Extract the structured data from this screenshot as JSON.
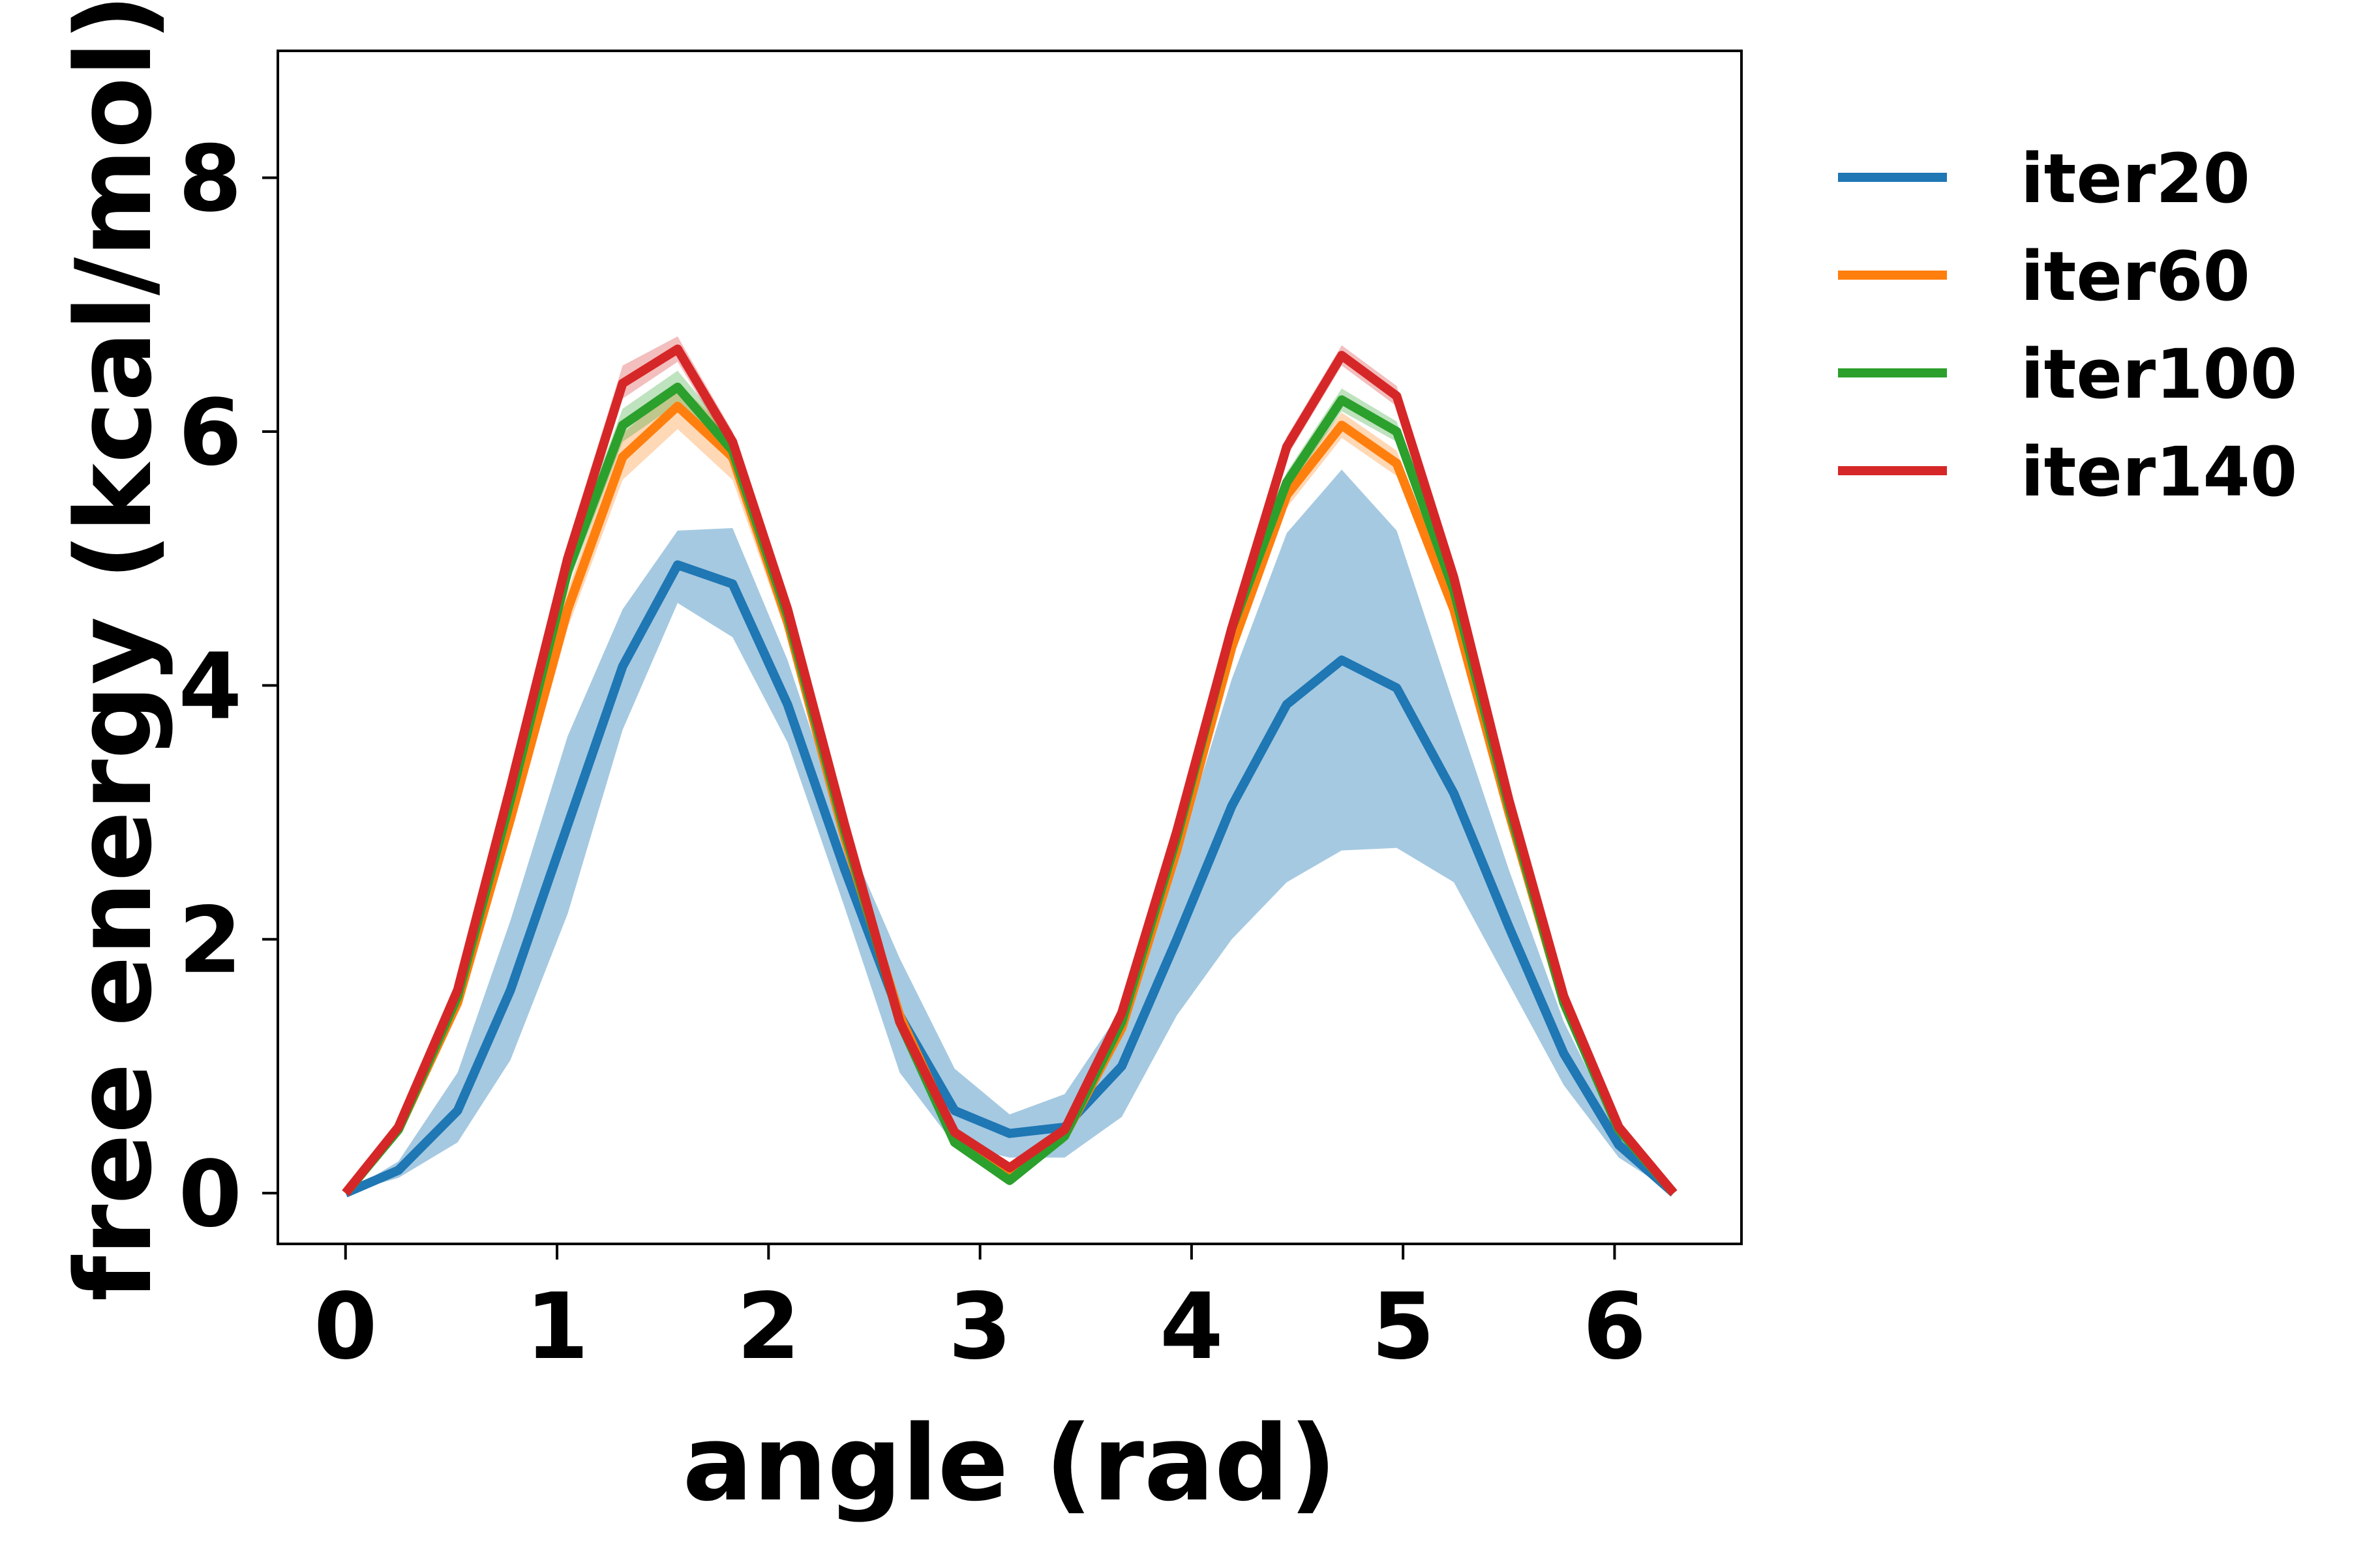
{
  "chart_data": {
    "type": "line",
    "xlabel": "angle (rad)",
    "ylabel": "free energy (kcal/mol)",
    "xlim": [
      -0.32,
      6.6
    ],
    "ylim": [
      -0.4,
      9.0
    ],
    "xticks": [
      0,
      1,
      2,
      3,
      4,
      5,
      6
    ],
    "yticks": [
      0,
      2,
      4,
      6,
      8
    ],
    "grid": false,
    "legend_position": "outside-top-right",
    "x": [
      0,
      0.25,
      0.53,
      0.78,
      1.05,
      1.31,
      1.57,
      1.83,
      2.09,
      2.36,
      2.62,
      2.88,
      3.14,
      3.4,
      3.67,
      3.93,
      4.19,
      4.45,
      4.71,
      4.97,
      5.24,
      5.5,
      5.76,
      6.02,
      6.28
    ],
    "series": [
      {
        "name": "iter20",
        "color": "#1f77b4",
        "values": [
          0,
          0.18,
          0.65,
          1.6,
          2.9,
          4.15,
          4.95,
          4.8,
          3.85,
          2.55,
          1.4,
          0.65,
          0.47,
          0.52,
          1.0,
          2.0,
          3.05,
          3.85,
          4.2,
          3.98,
          3.15,
          2.1,
          1.1,
          0.38,
          0
        ],
        "lower": [
          0,
          0.12,
          0.4,
          1.05,
          2.2,
          3.65,
          4.65,
          4.38,
          3.55,
          2.25,
          0.95,
          0.38,
          0.28,
          0.28,
          0.6,
          1.4,
          2.0,
          2.45,
          2.7,
          2.72,
          2.45,
          1.65,
          0.85,
          0.28,
          0
        ],
        "upper": [
          0,
          0.25,
          0.95,
          2.15,
          3.6,
          4.6,
          5.22,
          5.24,
          4.2,
          2.85,
          1.85,
          0.98,
          0.62,
          0.78,
          1.45,
          2.65,
          4.05,
          5.2,
          5.7,
          5.22,
          3.85,
          2.55,
          1.35,
          0.48,
          0
        ]
      },
      {
        "name": "iter60",
        "color": "#ff7f0e",
        "values": [
          0,
          0.5,
          1.5,
          2.95,
          4.6,
          5.8,
          6.2,
          5.8,
          4.5,
          2.8,
          1.4,
          0.45,
          0.15,
          0.45,
          1.3,
          2.7,
          4.3,
          5.5,
          6.05,
          5.75,
          4.6,
          3.0,
          1.5,
          0.5,
          0
        ],
        "lower": [
          0,
          0.45,
          1.42,
          2.82,
          4.45,
          5.62,
          6.02,
          5.62,
          4.38,
          2.7,
          1.33,
          0.4,
          0.1,
          0.4,
          1.24,
          2.6,
          4.2,
          5.4,
          5.95,
          5.65,
          4.5,
          2.92,
          1.44,
          0.45,
          0
        ],
        "upper": [
          0,
          0.55,
          1.58,
          3.08,
          4.75,
          5.98,
          6.38,
          5.98,
          4.62,
          2.9,
          1.47,
          0.5,
          0.2,
          0.5,
          1.36,
          2.8,
          4.4,
          5.6,
          6.15,
          5.85,
          4.7,
          3.08,
          1.56,
          0.55,
          0
        ]
      },
      {
        "name": "iter100",
        "color": "#2ca02c",
        "values": [
          0,
          0.5,
          1.55,
          3.1,
          4.9,
          6.05,
          6.35,
          5.85,
          4.55,
          2.85,
          1.35,
          0.4,
          0.1,
          0.45,
          1.35,
          2.8,
          4.45,
          5.6,
          6.25,
          6.0,
          4.75,
          3.05,
          1.5,
          0.5,
          0
        ],
        "lower": [
          0,
          0.46,
          1.48,
          3.0,
          4.78,
          5.92,
          6.22,
          5.74,
          4.46,
          2.78,
          1.29,
          0.36,
          0.06,
          0.4,
          1.29,
          2.72,
          4.36,
          5.52,
          6.16,
          5.92,
          4.66,
          2.98,
          1.45,
          0.46,
          0
        ],
        "upper": [
          0,
          0.54,
          1.62,
          3.2,
          5.02,
          6.18,
          6.48,
          5.96,
          4.64,
          2.92,
          1.41,
          0.44,
          0.14,
          0.5,
          1.41,
          2.88,
          4.54,
          5.68,
          6.34,
          6.08,
          4.84,
          3.12,
          1.55,
          0.54,
          0
        ]
      },
      {
        "name": "iter140",
        "color": "#d62728",
        "values": [
          0,
          0.52,
          1.6,
          3.2,
          5.0,
          6.38,
          6.65,
          5.92,
          4.6,
          2.9,
          1.35,
          0.48,
          0.2,
          0.5,
          1.42,
          2.85,
          4.45,
          5.88,
          6.6,
          6.28,
          4.85,
          3.1,
          1.55,
          0.52,
          0
        ],
        "lower": [
          0,
          0.48,
          1.54,
          3.1,
          4.88,
          6.26,
          6.55,
          5.84,
          4.52,
          2.84,
          1.3,
          0.44,
          0.16,
          0.46,
          1.37,
          2.78,
          4.38,
          5.8,
          6.52,
          6.2,
          4.78,
          3.04,
          1.5,
          0.48,
          0
        ],
        "upper": [
          0,
          0.56,
          1.66,
          3.3,
          5.12,
          6.52,
          6.75,
          6.0,
          4.68,
          2.96,
          1.4,
          0.52,
          0.24,
          0.54,
          1.47,
          2.92,
          4.52,
          5.96,
          6.68,
          6.36,
          4.92,
          3.16,
          1.6,
          0.56,
          0
        ]
      }
    ]
  }
}
